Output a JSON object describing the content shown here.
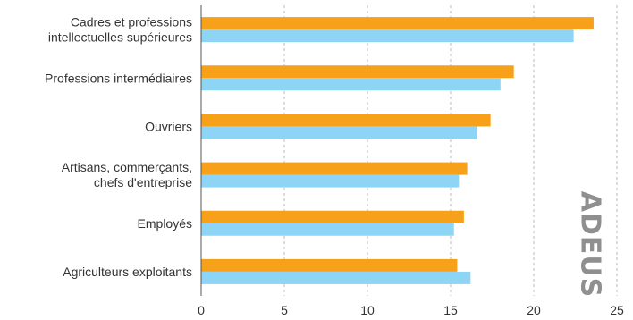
{
  "chart_data": {
    "type": "bar",
    "orientation": "horizontal",
    "categories": [
      [
        "Cadres et professions",
        "intellectuelles supérieures"
      ],
      [
        "Professions intermédiaires"
      ],
      [
        "Ouvriers"
      ],
      [
        "Artisans, commerçants,",
        "chefs d'entreprise"
      ],
      [
        "Employés"
      ],
      [
        "Agriculteurs exploitants"
      ]
    ],
    "series": [
      {
        "values": [
          23.6,
          18.8,
          17.4,
          16.0,
          15.8,
          15.4
        ]
      },
      {
        "values": [
          22.4,
          18.0,
          16.6,
          15.5,
          15.2,
          16.2
        ]
      }
    ],
    "xlim": [
      0,
      25
    ],
    "xticks": [
      "0",
      "5",
      "10",
      "15",
      "20",
      "25"
    ],
    "grid": "vertical dashed",
    "legend": "none",
    "colors": {
      "series_1": "#f7a11a",
      "series_2": "#8dd4f5",
      "grid": "#b8b8b8",
      "axis": "#555555"
    }
  },
  "watermark": "ADEUS"
}
